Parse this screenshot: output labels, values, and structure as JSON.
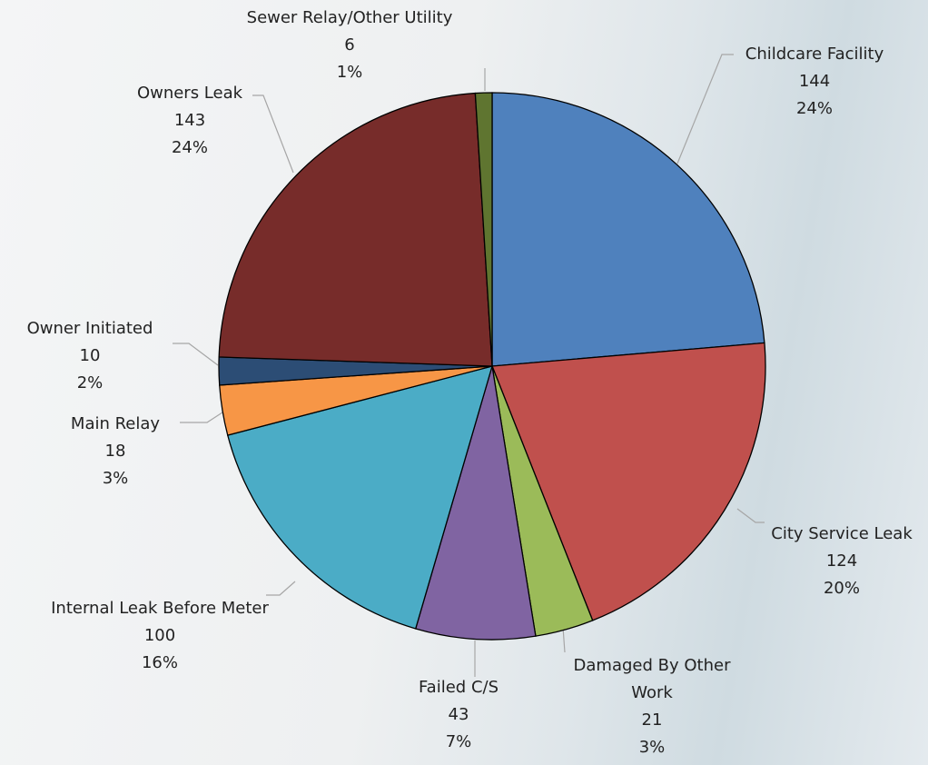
{
  "chart_data": {
    "type": "pie",
    "categories": [
      "Childcare Facility",
      "City Service Leak",
      "Damaged By Other Work",
      "Failed C/S",
      "Internal Leak Before Meter",
      "Main Relay",
      "Owner Initiated",
      "Owners Leak",
      "Sewer Relay/Other Utility"
    ],
    "values": [
      144,
      124,
      21,
      43,
      100,
      18,
      10,
      143,
      6
    ],
    "percent_labels": [
      "24%",
      "20%",
      "3%",
      "7%",
      "16%",
      "3%",
      "2%",
      "24%",
      "1%"
    ],
    "colors": [
      "#4f81bd",
      "#c0504d",
      "#9bbb59",
      "#8064a2",
      "#4bacc6",
      "#f79646",
      "#2c4d75",
      "#772c2a",
      "#5f7530"
    ]
  }
}
